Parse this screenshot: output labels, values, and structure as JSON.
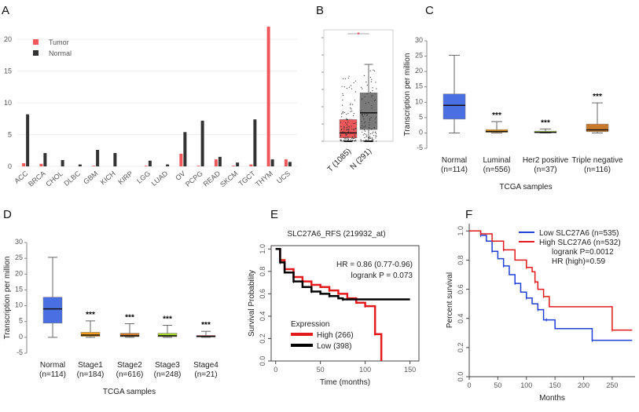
{
  "panel_letters": [
    "A",
    "B",
    "C",
    "D",
    "E",
    "F"
  ],
  "chart_data": [
    {
      "id": "A",
      "type": "bar",
      "categories": [
        "ACC",
        "BRCA",
        "CHOL",
        "DLBC",
        "GBM",
        "KICH",
        "KIRP",
        "LGG",
        "LUAD",
        "OV",
        "PCPG",
        "READ",
        "SKCM",
        "TGCT",
        "THYM",
        "UCS"
      ],
      "series": [
        {
          "name": "Tumor",
          "color": "#f0575a",
          "values": [
            0.5,
            0.4,
            0,
            0,
            0.1,
            0,
            0,
            0.1,
            0,
            2.0,
            0.1,
            1.1,
            0.1,
            0.3,
            22,
            1.1
          ]
        },
        {
          "name": "Normal",
          "color": "#333333",
          "values": [
            8.2,
            2.1,
            1.0,
            0.3,
            2.6,
            2.1,
            0,
            0.9,
            0.3,
            5.4,
            7.2,
            1.5,
            0.6,
            7.4,
            1.1,
            0.7
          ]
        }
      ],
      "yticks": [
        0,
        5,
        10,
        15,
        20
      ],
      "ylim": [
        0,
        22.5
      ],
      "legend": "top-left",
      "grid": true
    },
    {
      "id": "B",
      "type": "box",
      "categories": [
        "T (1085)",
        "N (291)"
      ],
      "colors": [
        "#f0575a",
        "#7a7a7a"
      ],
      "boxes": [
        {
          "min": 0,
          "q1": 0.2,
          "median": 0.5,
          "q3": 1.3,
          "max": 1.3
        },
        {
          "min": 0,
          "q1": 0.7,
          "median": 1.7,
          "q3": 2.9,
          "max": 4.6
        }
      ],
      "ylim": [
        0,
        6.2
      ],
      "significance": "*"
    },
    {
      "id": "C",
      "type": "box",
      "ylabel": "Transcription per million",
      "xlabel": "TCGA samples",
      "ylim": [
        -5,
        30
      ],
      "yticks": [
        -5,
        0,
        5,
        10,
        15,
        20,
        25,
        30
      ],
      "categories": [
        "Normal",
        "Luminal",
        "Her2 positive",
        "Triple negative"
      ],
      "counts": [
        "(n=114)",
        "(n=556)",
        "(n=37)",
        "(n=116)"
      ],
      "colors": [
        "#4a6fe3",
        "#f39c1a",
        "#a8d430",
        "#c87a2a"
      ],
      "boxes": [
        {
          "min": 0,
          "q1": 4.5,
          "median": 9,
          "q3": 12.7,
          "max": 25.3
        },
        {
          "min": 0,
          "q1": 0.2,
          "median": 0.5,
          "q3": 1.1,
          "max": 3.7
        },
        {
          "min": 0,
          "q1": 0.1,
          "median": 0.2,
          "q3": 0.6,
          "max": 1.3
        },
        {
          "min": 0,
          "q1": 0.4,
          "median": 1,
          "q3": 2.9,
          "max": 9.8
        }
      ],
      "annotations": [
        "",
        "***",
        "***",
        "***"
      ]
    },
    {
      "id": "D",
      "type": "box",
      "ylabel": "Transcription per million",
      "xlabel": "TCGA samples",
      "ylim": [
        -5,
        30
      ],
      "yticks": [
        -5,
        0,
        5,
        10,
        15,
        20,
        25,
        30
      ],
      "categories": [
        "Normal",
        "Stage1",
        "Stage2",
        "Stage3",
        "Stage4"
      ],
      "counts": [
        "(n=114)",
        "(n=184)",
        "(n=616)",
        "(n=248)",
        "(n=21)"
      ],
      "colors": [
        "#4a6fe3",
        "#f39c1a",
        "#c87a2a",
        "#a8d430",
        "#e03a2a"
      ],
      "boxes": [
        {
          "min": 0,
          "q1": 4.5,
          "median": 9,
          "q3": 12.7,
          "max": 25.3
        },
        {
          "min": 0,
          "q1": 0.3,
          "median": 0.7,
          "q3": 1.6,
          "max": 5.2
        },
        {
          "min": 0,
          "q1": 0.2,
          "median": 0.5,
          "q3": 1.3,
          "max": 4.3
        },
        {
          "min": 0,
          "q1": 0.2,
          "median": 0.5,
          "q3": 1.3,
          "max": 3.8
        },
        {
          "min": 0,
          "q1": 0.1,
          "median": 0.3,
          "q3": 0.6,
          "max": 1.9
        }
      ],
      "annotations": [
        "",
        "***",
        "***",
        "***",
        "***"
      ]
    },
    {
      "id": "E",
      "type": "line",
      "title": "SLC27A6_RFS  (219932_at)",
      "xlabel": "Time (months)",
      "ylabel": "Survival Probability",
      "xticks": [
        0,
        50,
        100,
        150
      ],
      "yticks": [
        0,
        0.2,
        0.4,
        0.6,
        0.8,
        1.0
      ],
      "xlim": [
        -5,
        160
      ],
      "ylim": [
        0,
        1.03
      ],
      "annotation": [
        "HR = 0.86 (0.77-0.96)",
        "logrank P = 0.073"
      ],
      "legend_title": "Expression",
      "series": [
        {
          "name": "High (266)",
          "color": "#e31a1c",
          "x": [
            0,
            5,
            10,
            20,
            30,
            40,
            50,
            60,
            70,
            80,
            90,
            100,
            110,
            111,
            117,
            118
          ],
          "y": [
            1,
            0.9,
            0.82,
            0.75,
            0.71,
            0.68,
            0.66,
            0.63,
            0.6,
            0.56,
            0.52,
            0.49,
            0.49,
            0.24,
            0.24,
            0
          ]
        },
        {
          "name": "Low (398)",
          "color": "#000000",
          "x": [
            0,
            5,
            10,
            20,
            30,
            40,
            50,
            60,
            70,
            75,
            150
          ],
          "y": [
            1,
            0.88,
            0.79,
            0.71,
            0.66,
            0.62,
            0.6,
            0.58,
            0.56,
            0.55,
            0.55
          ]
        }
      ]
    },
    {
      "id": "F",
      "type": "line",
      "xlabel": "Months",
      "ylabel": "Percent survival",
      "xticks": [
        0,
        50,
        100,
        150,
        200,
        250
      ],
      "yticks": [
        0,
        0.2,
        0.4,
        0.6,
        0.8,
        1.0
      ],
      "xlim": [
        0,
        290
      ],
      "ylim": [
        0,
        1.05
      ],
      "annotation": [
        "logrank P=0.0012",
        "HR (high)=0.59"
      ],
      "series": [
        {
          "name": "Low SLC27A6 (n=535)",
          "color": "#1f3fd6",
          "x": [
            0,
            20,
            30,
            40,
            50,
            60,
            70,
            80,
            90,
            100,
            110,
            120,
            130,
            135,
            150,
            215,
            285
          ],
          "y": [
            1,
            0.97,
            0.93,
            0.86,
            0.81,
            0.76,
            0.7,
            0.64,
            0.58,
            0.54,
            0.5,
            0.46,
            0.39,
            0.39,
            0.33,
            0.25,
            0.25
          ]
        },
        {
          "name": "High SLC27A6 (n=532)",
          "color": "#e31a1c",
          "x": [
            0,
            20,
            40,
            60,
            80,
            100,
            110,
            115,
            120,
            130,
            140,
            250,
            285
          ],
          "y": [
            1,
            0.98,
            0.93,
            0.87,
            0.8,
            0.75,
            0.72,
            0.65,
            0.6,
            0.55,
            0.48,
            0.32,
            0.32
          ]
        }
      ]
    }
  ]
}
